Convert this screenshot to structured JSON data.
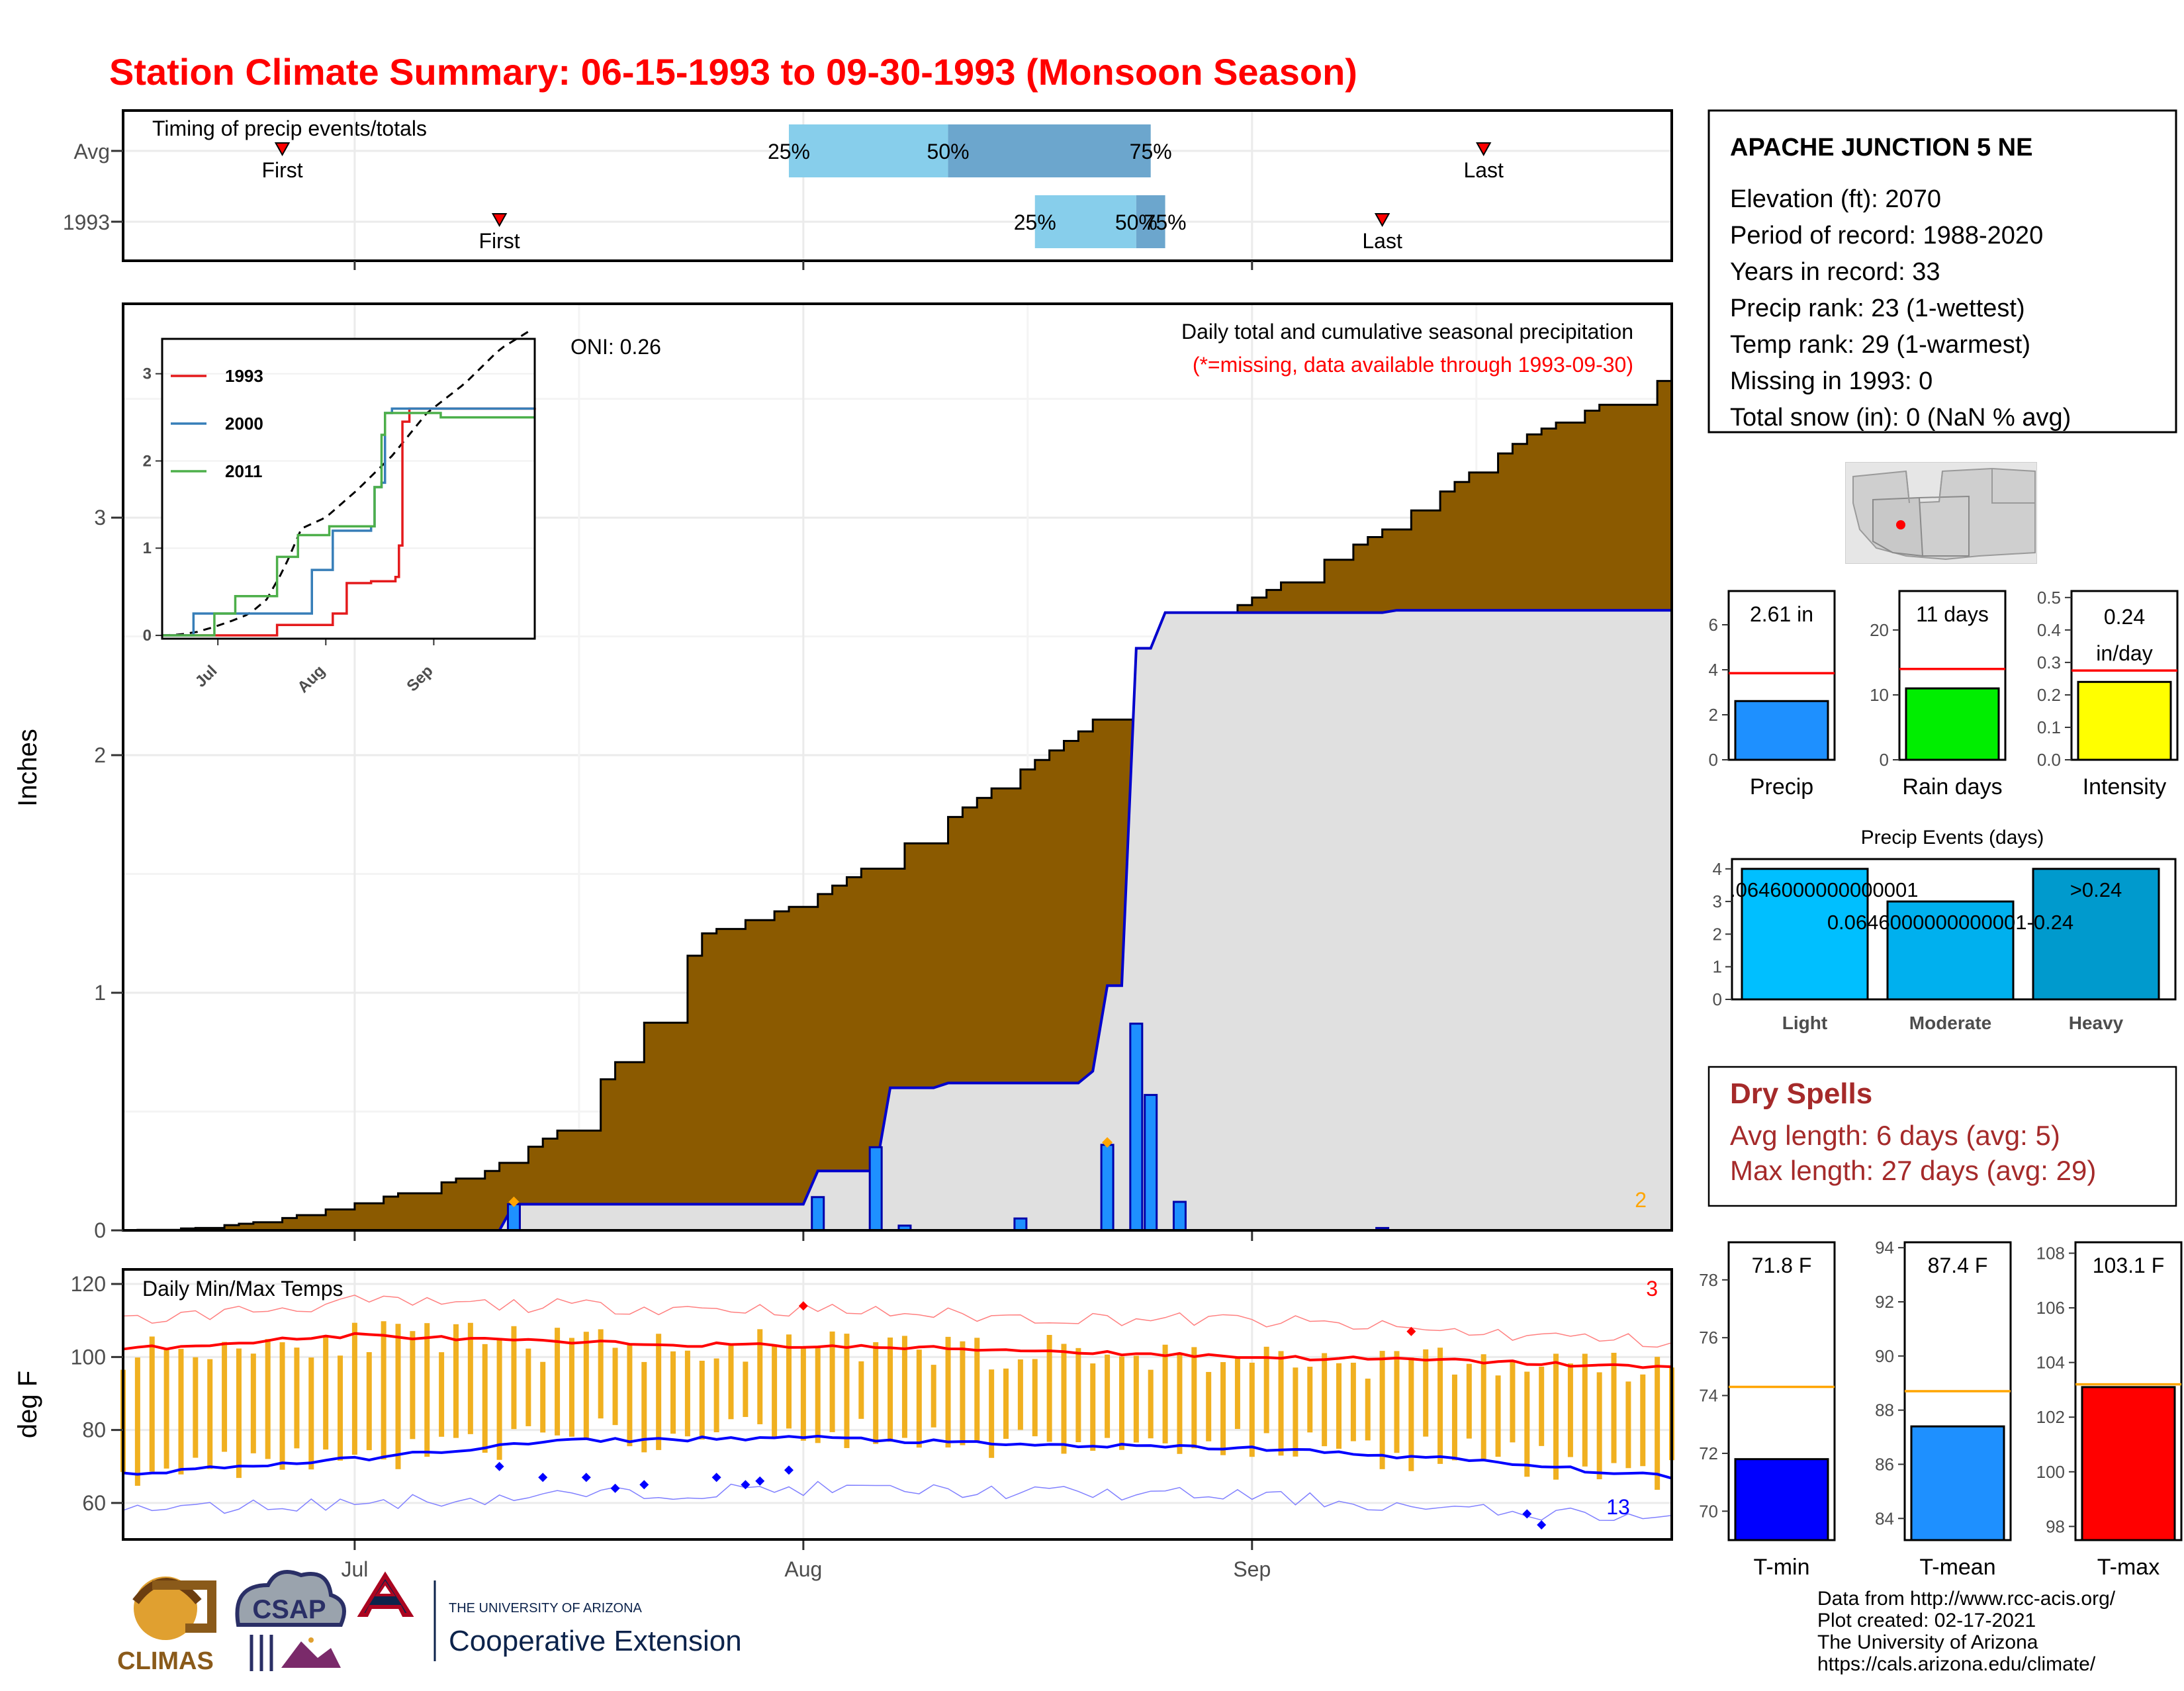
{
  "title": "Station Climate Summary: 06-15-1993 to 09-30-1993 (Monsoon Season)",
  "colors": {
    "title": "#ff0000",
    "precip_fill": "#8b5a00",
    "year_precip_fill": "#e0e0e0",
    "year_line": "#0000cc",
    "daily_bar": "#1e90ff",
    "temp_bar": "#f0b020",
    "tmax_line": "#ff0000",
    "tmin_line": "#0000ff",
    "dry_spell_text": "#a52a2a"
  },
  "timing_panel": {
    "title": "Timing of precip events/totals",
    "rows": [
      {
        "label": "Avg",
        "first_day": "06-26",
        "last_day": "09-17",
        "first_label": "First",
        "last_label": "Last",
        "q25": "07-31",
        "q50": "08-11",
        "q75": "08-25",
        "q25_label": "25%",
        "q50_label": "50%",
        "q75_label": "75%"
      },
      {
        "label": "1993",
        "first_day": "07-11",
        "last_day": "09-10",
        "first_label": "First",
        "last_label": "Last",
        "q25": "08-17",
        "q50": "08-24",
        "q75": "08-26",
        "q25_label": "25%",
        "q50_label": "50%",
        "q75_label": "75%"
      }
    ]
  },
  "station": {
    "name": "APACHE JUNCTION 5 NE",
    "lines": [
      "Elevation (ft): 2070",
      "Period of record: 1988-2020",
      "Years in record: 33",
      "Precip rank: 23 (1-wettest)",
      "Temp rank: 29 (1-warmest)",
      "Missing in 1993: 0",
      "Total snow (in): 0 (NaN % avg)"
    ]
  },
  "map": {
    "icon": "arizona-locator-map-icon"
  },
  "main_precip": {
    "ylabel": "Inches",
    "header": "Daily total and cumulative seasonal precipitation",
    "subheader": "(*=missing, data available through 1993-09-30)",
    "oni": "ONI: 0.26",
    "corner_count": "2",
    "x_ticks": [
      "Jul",
      "Aug",
      "Sep"
    ],
    "y_ticks": [
      "0",
      "1",
      "2",
      "3"
    ]
  },
  "inset": {
    "legend": [
      "1993",
      "2000",
      "2011"
    ],
    "y_ticks": [
      "0",
      "1",
      "2",
      "3"
    ],
    "x_ticks": [
      "Jul",
      "Aug",
      "Sep"
    ]
  },
  "temps": {
    "title": "Daily Min/Max Temps",
    "ylabel": "deg F",
    "y_ticks": [
      "60",
      "80",
      "100",
      "120"
    ],
    "x_ticks": [
      "Jul",
      "Aug",
      "Sep"
    ],
    "top_count": "3",
    "bottom_count": "13"
  },
  "precip_bars": [
    {
      "label": "Precip",
      "value": 2.61,
      "avg": 3.85,
      "text": "2.61 in",
      "ylim": [
        0,
        7.5
      ],
      "ticks": [
        "0",
        "2",
        "4",
        "6"
      ],
      "tick_values": [
        0,
        2,
        4,
        6
      ],
      "color": "#1e90ff"
    },
    {
      "label": "Rain days",
      "value": 11,
      "avg": 14,
      "text": "11 days",
      "ylim": [
        0,
        26
      ],
      "ticks": [
        "0",
        "10",
        "20"
      ],
      "tick_values": [
        0,
        10,
        20
      ],
      "color": "#00ee00"
    },
    {
      "label": "Intensity",
      "value": 0.24,
      "avg": 0.275,
      "text_lines": [
        "0.24",
        "in/day"
      ],
      "ylim": [
        0,
        0.52
      ],
      "ticks": [
        "0.0",
        "0.1",
        "0.2",
        "0.3",
        "0.4",
        "0.5"
      ],
      "tick_values": [
        0,
        0.1,
        0.2,
        0.3,
        0.4,
        0.5
      ],
      "color": "#ffff00"
    }
  ],
  "precip_events": {
    "title": "Precip Events (days)",
    "categories": [
      "Light",
      "Moderate",
      "Heavy"
    ],
    "values": [
      4,
      3,
      4
    ],
    "labels": [
      ".0646000000000001",
      "0.0646000000000001-0.24",
      ">0.24"
    ],
    "colors": [
      "#00bfff",
      "#00b0ee",
      "#009acd"
    ],
    "y_ticks": [
      "0",
      "1",
      "2",
      "3",
      "4"
    ]
  },
  "dry_spells": {
    "title": "Dry Spells",
    "avg": "Avg length: 6 days (avg: 5)",
    "max": "Max length: 27 days (avg: 29)"
  },
  "temp_bars": [
    {
      "label": "T-min",
      "value": 71.8,
      "avg": 74.3,
      "text": "71.8 F",
      "ylim": [
        69,
        79.3
      ],
      "ticks": [
        "70",
        "72",
        "74",
        "76",
        "78"
      ],
      "tick_values": [
        70,
        72,
        74,
        76,
        78
      ],
      "color": "#0000ff"
    },
    {
      "label": "T-mean",
      "value": 87.4,
      "avg": 88.7,
      "text": "87.4 F",
      "ylim": [
        83.2,
        94.2
      ],
      "ticks": [
        "84",
        "86",
        "88",
        "90",
        "92",
        "94"
      ],
      "tick_values": [
        84,
        86,
        88,
        90,
        92,
        94
      ],
      "color": "#1e90ff"
    },
    {
      "label": "T-max",
      "value": 103.1,
      "avg": 103.2,
      "text": "103.1 F",
      "ylim": [
        97.5,
        108.4
      ],
      "ticks": [
        "98",
        "100",
        "102",
        "104",
        "106",
        "108"
      ],
      "tick_values": [
        98,
        100,
        102,
        104,
        106,
        108
      ],
      "color": "#ff0000"
    }
  ],
  "footer": {
    "lines": [
      "Data from http://www.rcc-acis.org/",
      "Plot created: 02-17-2021",
      "The University of Arizona",
      "https://cals.arizona.edu/climate/"
    ],
    "logos": {
      "climas": "CLIMAS",
      "csap": "CSAP",
      "ua_small": "THE UNIVERSITY OF ARIZONA",
      "ua_big": "Cooperative Extension"
    }
  },
  "chart_data": {
    "type": "area",
    "title": "Station Climate Summary: 06-15-1993 to 09-30-1993 (Monsoon Season)",
    "ylabel": "Inches",
    "ylim": [
      0,
      3.9
    ],
    "x_range": [
      "06-15",
      "09-30"
    ],
    "series": [
      {
        "name": "Avg",
        "x": [
          "06-15",
          "06-20",
          "06-25",
          "06-30",
          "07-05",
          "07-10",
          "07-15",
          "07-20",
          "07-25",
          "08-01",
          "08-10",
          "08-20",
          "08-30",
          "09-10",
          "09-20",
          "09-30"
        ],
        "y": [
          0.0,
          0.01,
          0.04,
          0.1,
          0.17,
          0.25,
          0.42,
          0.78,
          1.25,
          1.38,
          1.7,
          2.1,
          2.6,
          2.95,
          3.35,
          3.6
        ]
      },
      {
        "name": "1993",
        "x": [
          "06-15",
          "07-11",
          "07-12",
          "08-01",
          "08-02",
          "08-06",
          "08-07",
          "08-10",
          "08-11",
          "08-20",
          "08-21",
          "08-22",
          "08-23",
          "08-24",
          "08-25",
          "08-26",
          "08-27",
          "09-10",
          "09-11",
          "09-30"
        ],
        "y": [
          0.0,
          0.0,
          0.11,
          0.11,
          0.25,
          0.25,
          0.6,
          0.6,
          0.62,
          0.62,
          0.67,
          1.03,
          1.03,
          2.45,
          2.45,
          2.6,
          2.6,
          2.6,
          2.61,
          2.61
        ]
      },
      {
        "name": "Daily precip 1993",
        "x": [
          "07-12",
          "08-02",
          "08-06",
          "08-08",
          "08-16",
          "08-22",
          "08-24",
          "08-25",
          "08-27",
          "09-10"
        ],
        "y": [
          0.11,
          0.14,
          0.35,
          0.02,
          0.05,
          0.36,
          0.87,
          0.57,
          0.12,
          0.01
        ]
      }
    ],
    "temperature": {
      "ylim": [
        50,
        124
      ],
      "tmax_avg": {
        "x": [
          "06-15",
          "07-01",
          "07-15",
          "08-01",
          "08-15",
          "09-01",
          "09-15",
          "09-30"
        ],
        "y": [
          102,
          106,
          104,
          103,
          102,
          100,
          99,
          97
        ]
      },
      "tmin_avg": {
        "x": [
          "06-15",
          "07-01",
          "07-15",
          "08-01",
          "08-15",
          "09-01",
          "09-15",
          "09-30"
        ],
        "y": [
          68,
          72,
          77,
          78,
          76,
          75,
          72,
          67
        ]
      },
      "tmax_record": {
        "x": [
          "06-15",
          "07-01",
          "07-15",
          "08-01",
          "08-15",
          "09-01",
          "09-15",
          "09-30"
        ],
        "y": [
          110,
          115,
          114,
          113,
          111,
          110,
          107,
          104
        ]
      },
      "tmin_record": {
        "x": [
          "06-15",
          "07-01",
          "07-15",
          "08-01",
          "08-15",
          "09-01",
          "09-15",
          "09-30"
        ],
        "y": [
          58,
          60,
          62,
          64,
          63,
          62,
          58,
          56
        ]
      }
    }
  }
}
